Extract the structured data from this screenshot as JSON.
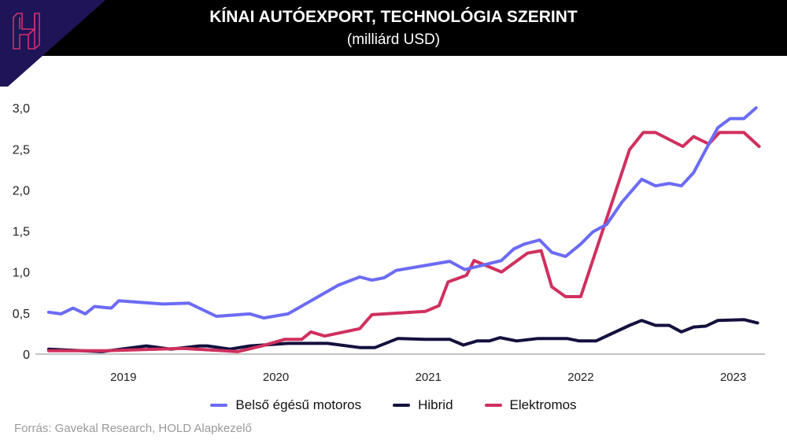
{
  "header": {
    "title": "KÍNAI AUTÓEXPORT, TECHNOLÓGIA SZERINT",
    "subtitle": "(milliárd USD)",
    "logo_text": "H"
  },
  "colors": {
    "header_bg": "#000000",
    "logo_bg": "#1f1458",
    "logo": "#d0306e"
  },
  "source": "Forrás: Gavekal Research, HOLD Alapkezelő",
  "chart_data": {
    "type": "line",
    "title": "KÍNAI AUTÓEXPORT, TECHNOLÓGIA SZERINT",
    "subtitle": "(milliárd USD)",
    "xlabel": "",
    "ylabel": "",
    "xlim": [
      2019,
      2023.7
    ],
    "ylim": [
      0,
      3
    ],
    "yticks": [
      {
        "v": 0,
        "label": "0"
      },
      {
        "v": 0.5,
        "label": "0,5"
      },
      {
        "v": 1,
        "label": "1,0"
      },
      {
        "v": 1.5,
        "label": "1,5"
      },
      {
        "v": 2,
        "label": "2,0"
      },
      {
        "v": 2.5,
        "label": "2,5"
      },
      {
        "v": 3,
        "label": "3,0"
      }
    ],
    "xticks": [
      {
        "v": 2019.5,
        "label": "2019"
      },
      {
        "v": 2020.5,
        "label": "2020"
      },
      {
        "v": 2021.5,
        "label": "2021"
      },
      {
        "v": 2022.5,
        "label": "2022"
      },
      {
        "v": 2023.5,
        "label": "2023"
      }
    ],
    "grid": false,
    "legend_position": "bottom",
    "series": [
      {
        "name": "Belső égésű motoros",
        "color": "#6b6bf5",
        "x": [
          2019.01,
          2019.09,
          2019.17,
          2019.25,
          2019.31,
          2019.42,
          2019.47,
          2019.76,
          2019.93,
          2020.11,
          2020.33,
          2020.42,
          2020.58,
          2020.91,
          2021.05,
          2021.13,
          2021.21,
          2021.29,
          2021.48,
          2021.64,
          2021.74,
          2021.98,
          2022.06,
          2022.13,
          2022.23,
          2022.31,
          2022.4,
          2022.5,
          2022.58,
          2022.67,
          2022.77,
          2022.9,
          2022.99,
          2023.08,
          2023.16,
          2023.24,
          2023.34,
          2023.4,
          2023.48,
          2023.57,
          2023.65
        ],
        "y": [
          0.51,
          0.49,
          0.56,
          0.49,
          0.58,
          0.56,
          0.65,
          0.61,
          0.62,
          0.46,
          0.49,
          0.44,
          0.49,
          0.84,
          0.94,
          0.9,
          0.93,
          1.02,
          1.08,
          1.13,
          1.03,
          1.14,
          1.28,
          1.34,
          1.39,
          1.24,
          1.19,
          1.34,
          1.49,
          1.58,
          1.85,
          2.13,
          2.05,
          2.08,
          2.05,
          2.21,
          2.56,
          2.76,
          2.87,
          2.87,
          3.0
        ]
      },
      {
        "name": "Hibrid",
        "color": "#14103e",
        "x": [
          2019.01,
          2019.36,
          2019.65,
          2019.81,
          2020.0,
          2020.05,
          2020.2,
          2020.33,
          2020.58,
          2020.84,
          2021.05,
          2021.15,
          2021.3,
          2021.48,
          2021.64,
          2021.73,
          2021.82,
          2021.9,
          2021.97,
          2022.08,
          2022.22,
          2022.41,
          2022.49,
          2022.6,
          2022.82,
          2022.9,
          2022.99,
          2023.08,
          2023.16,
          2023.24,
          2023.32,
          2023.4,
          2023.57,
          2023.66
        ],
        "y": [
          0.06,
          0.03,
          0.1,
          0.06,
          0.1,
          0.1,
          0.06,
          0.1,
          0.13,
          0.13,
          0.08,
          0.08,
          0.19,
          0.18,
          0.18,
          0.11,
          0.16,
          0.16,
          0.2,
          0.16,
          0.19,
          0.19,
          0.16,
          0.16,
          0.35,
          0.41,
          0.35,
          0.35,
          0.27,
          0.33,
          0.34,
          0.41,
          0.42,
          0.38
        ]
      },
      {
        "name": "Elektromos",
        "color": "#d0305e",
        "x": [
          2019.01,
          2019.38,
          2019.89,
          2020.25,
          2020.41,
          2020.56,
          2020.67,
          2020.73,
          2020.82,
          2021.05,
          2021.13,
          2021.3,
          2021.48,
          2021.57,
          2021.63,
          2021.75,
          2021.8,
          2021.98,
          2022.15,
          2022.24,
          2022.31,
          2022.4,
          2022.5,
          2022.82,
          2022.91,
          2022.99,
          2023.17,
          2023.24,
          2023.34,
          2023.41,
          2023.57,
          2023.67
        ],
        "y": [
          0.04,
          0.04,
          0.07,
          0.03,
          0.1,
          0.18,
          0.18,
          0.27,
          0.22,
          0.31,
          0.48,
          0.5,
          0.52,
          0.59,
          0.88,
          0.96,
          1.14,
          1.0,
          1.23,
          1.26,
          0.82,
          0.7,
          0.7,
          2.49,
          2.7,
          2.7,
          2.53,
          2.65,
          2.56,
          2.7,
          2.7,
          2.53
        ]
      }
    ]
  }
}
